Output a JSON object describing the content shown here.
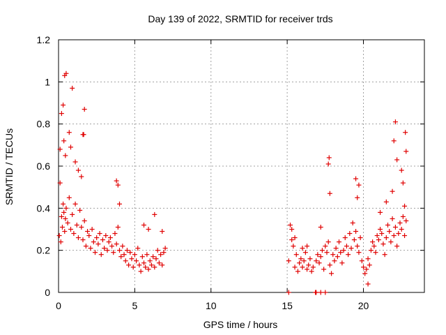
{
  "chart_data": {
    "type": "scatter",
    "title": "Day 139 of 2022, SRMTID for receiver trds",
    "xlabel": "GPS time / hours",
    "ylabel": "SRMTID / TECUs",
    "xlim": [
      0,
      24
    ],
    "ylim": [
      0,
      1.2
    ],
    "xticks": [
      0,
      5,
      10,
      15,
      20
    ],
    "yticks": [
      0,
      0.2,
      0.4,
      0.6,
      0.8,
      1,
      1.2
    ],
    "xtick_labels": [
      "0",
      "5",
      "10",
      "15",
      "20"
    ],
    "ytick_labels": [
      "0",
      "0.2",
      "0.4",
      "0.6",
      "0.8",
      "1",
      "1.2"
    ],
    "grid": true,
    "marker": "+",
    "color": "#e00000",
    "series": [
      {
        "name": "SRMTID",
        "x": [
          0.05,
          0.1,
          0.15,
          0.2,
          0.25,
          0.3,
          0.35,
          0.4,
          0.45,
          0.5,
          0.6,
          0.7,
          0.8,
          0.9,
          1.0,
          1.1,
          1.2,
          1.3,
          1.4,
          1.5,
          1.6,
          1.7,
          1.8,
          1.9,
          2.0,
          2.1,
          2.2,
          2.3,
          2.4,
          2.5,
          2.6,
          2.7,
          2.8,
          2.9,
          3.0,
          3.1,
          3.2,
          3.3,
          3.4,
          3.5,
          3.6,
          3.7,
          3.8,
          3.9,
          4.0,
          4.1,
          4.2,
          4.3,
          4.4,
          4.5,
          4.6,
          4.7,
          4.8,
          4.9,
          5.0,
          5.1,
          5.2,
          5.3,
          5.4,
          5.5,
          5.6,
          5.7,
          5.8,
          5.9,
          6.0,
          6.1,
          6.2,
          6.3,
          6.4,
          6.5,
          6.6,
          6.7,
          6.8,
          6.9,
          7.0,
          0.1,
          0.2,
          0.3,
          0.4,
          0.5,
          0.7,
          0.9,
          1.1,
          1.3,
          1.5,
          1.7,
          0.35,
          0.45,
          0.8,
          1.6,
          1.65,
          3.8,
          3.9,
          4.0,
          5.6,
          5.9,
          6.3,
          6.8,
          15.1,
          15.3,
          15.4,
          15.5,
          15.6,
          15.7,
          15.8,
          15.9,
          16.0,
          16.1,
          16.2,
          16.3,
          16.4,
          16.5,
          16.6,
          16.7,
          16.9,
          17.0,
          17.1,
          17.2,
          17.3,
          17.4,
          17.5,
          17.6,
          17.7,
          17.8,
          17.9,
          18.0,
          18.1,
          18.2,
          18.3,
          18.4,
          18.5,
          18.6,
          18.7,
          18.8,
          18.9,
          19.0,
          19.1,
          19.2,
          19.3,
          19.4,
          19.5,
          19.6,
          19.7,
          19.8,
          19.9,
          20.0,
          20.1,
          20.2,
          20.3,
          20.4,
          20.5,
          20.6,
          20.7,
          20.8,
          20.9,
          21.0,
          21.1,
          21.2,
          21.3,
          21.4,
          21.5,
          21.6,
          21.7,
          21.8,
          21.9,
          22.0,
          22.1,
          22.2,
          22.3,
          22.4,
          22.5,
          22.6,
          22.7,
          22.8,
          15.2,
          15.3,
          15.5,
          16.0,
          16.3,
          17.2,
          17.7,
          17.75,
          17.8,
          19.5,
          19.6,
          19.7,
          21.1,
          21.5,
          21.9,
          22.0,
          22.1,
          22.2,
          22.5,
          22.6,
          22.7,
          22.8,
          22.75,
          20.3,
          15.1,
          16.85,
          16.9,
          17.2,
          17.5
        ],
        "y": [
          0.27,
          0.52,
          0.24,
          0.36,
          0.31,
          0.42,
          0.38,
          0.29,
          0.35,
          0.4,
          0.33,
          0.45,
          0.3,
          0.37,
          0.28,
          0.42,
          0.32,
          0.26,
          0.39,
          0.31,
          0.25,
          0.34,
          0.22,
          0.29,
          0.27,
          0.21,
          0.3,
          0.24,
          0.19,
          0.26,
          0.23,
          0.28,
          0.18,
          0.25,
          0.21,
          0.27,
          0.2,
          0.24,
          0.26,
          0.22,
          0.19,
          0.28,
          0.23,
          0.31,
          0.2,
          0.17,
          0.22,
          0.18,
          0.15,
          0.2,
          0.13,
          0.19,
          0.16,
          0.12,
          0.18,
          0.15,
          0.21,
          0.13,
          0.1,
          0.17,
          0.14,
          0.12,
          0.18,
          0.11,
          0.15,
          0.13,
          0.17,
          0.12,
          0.16,
          0.2,
          0.14,
          0.18,
          0.13,
          0.19,
          0.21,
          0.68,
          0.85,
          0.89,
          1.03,
          1.04,
          0.76,
          0.97,
          0.62,
          0.58,
          0.55,
          0.87,
          0.72,
          0.65,
          0.69,
          0.75,
          0.75,
          0.53,
          0.51,
          0.42,
          0.32,
          0.3,
          0.37,
          0.29,
          0.15,
          0.3,
          0.22,
          0.12,
          0.18,
          0.1,
          0.14,
          0.16,
          0.12,
          0.15,
          0.19,
          0.11,
          0.13,
          0.16,
          0.1,
          0.12,
          0.15,
          0.18,
          0.14,
          0.17,
          0.2,
          0.11,
          0.22,
          0.19,
          0.24,
          0.13,
          0.09,
          0.18,
          0.15,
          0.21,
          0.17,
          0.24,
          0.19,
          0.14,
          0.2,
          0.26,
          0.22,
          0.18,
          0.28,
          0.21,
          0.33,
          0.25,
          0.29,
          0.22,
          0.19,
          0.26,
          0.15,
          0.12,
          0.09,
          0.11,
          0.16,
          0.13,
          0.2,
          0.24,
          0.22,
          0.19,
          0.27,
          0.25,
          0.3,
          0.28,
          0.23,
          0.18,
          0.26,
          0.32,
          0.29,
          0.24,
          0.35,
          0.27,
          0.31,
          0.22,
          0.28,
          0.33,
          0.3,
          0.36,
          0.27,
          0.34,
          0.32,
          0.25,
          0.26,
          0.21,
          0.22,
          0.31,
          0.61,
          0.64,
          0.47,
          0.54,
          0.45,
          0.51,
          0.38,
          0.43,
          0.48,
          0.72,
          0.81,
          0.63,
          0.58,
          0.52,
          0.41,
          0.67,
          0.76,
          0.04,
          0.0,
          0.0,
          0.0,
          0.0,
          0.0
        ]
      }
    ]
  }
}
